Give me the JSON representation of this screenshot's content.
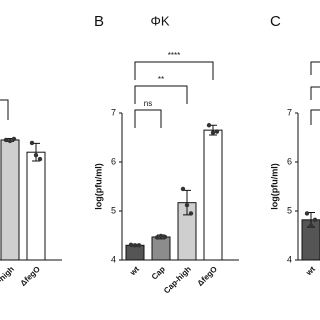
{
  "chart_data": [
    {
      "type": "bar",
      "ylim": [
        4,
        7
      ],
      "categories": [
        "Cap-high",
        "ΔfegO"
      ],
      "values": [
        6.45,
        6.2
      ],
      "errors": [
        0.03,
        0.18
      ],
      "points": [
        [
          6.45,
          6.43,
          6.47
        ],
        [
          6.39,
          6.14,
          6.06
        ]
      ],
      "colors": [
        "#cfcfcf",
        "#ffffff"
      ]
    },
    {
      "type": "bar",
      "panel": "B",
      "title": "ΦK",
      "y_label": "log(pfu/ml)",
      "ylim": [
        4,
        7
      ],
      "yticks": [
        4,
        5,
        6,
        7
      ],
      "categories": [
        "wt",
        "Cap",
        "Cap-high",
        "ΔfegO"
      ],
      "values": [
        4.3,
        4.47,
        5.17,
        6.65
      ],
      "errors": [
        0.02,
        0.04,
        0.25,
        0.1
      ],
      "points": [
        [
          4.31,
          4.3,
          4.3
        ],
        [
          4.46,
          4.49,
          4.47
        ],
        [
          5.45,
          5.12,
          4.95
        ],
        [
          6.75,
          6.6,
          6.62
        ]
      ],
      "colors": [
        "#555555",
        "#8c8c8c",
        "#cfcfcf",
        "#ffffff"
      ],
      "annotations": [
        {
          "text": "ns",
          "categories": [
            "wt",
            "Cap"
          ]
        },
        {
          "text": "**",
          "categories": [
            "wt",
            "Cap-high"
          ]
        },
        {
          "text": "****",
          "categories": [
            "wt",
            "ΔfegO"
          ]
        }
      ]
    },
    {
      "type": "bar",
      "panel": "C",
      "y_label": "log(pfu/ml)",
      "ylim": [
        4,
        7
      ],
      "yticks": [
        4,
        5,
        6,
        7
      ],
      "categories": [
        "wt"
      ],
      "values": [
        4.82
      ],
      "errors": [
        0.15
      ],
      "points": [
        [
          4.95,
          4.7,
          4.82
        ]
      ],
      "colors": [
        "#555555"
      ]
    }
  ]
}
